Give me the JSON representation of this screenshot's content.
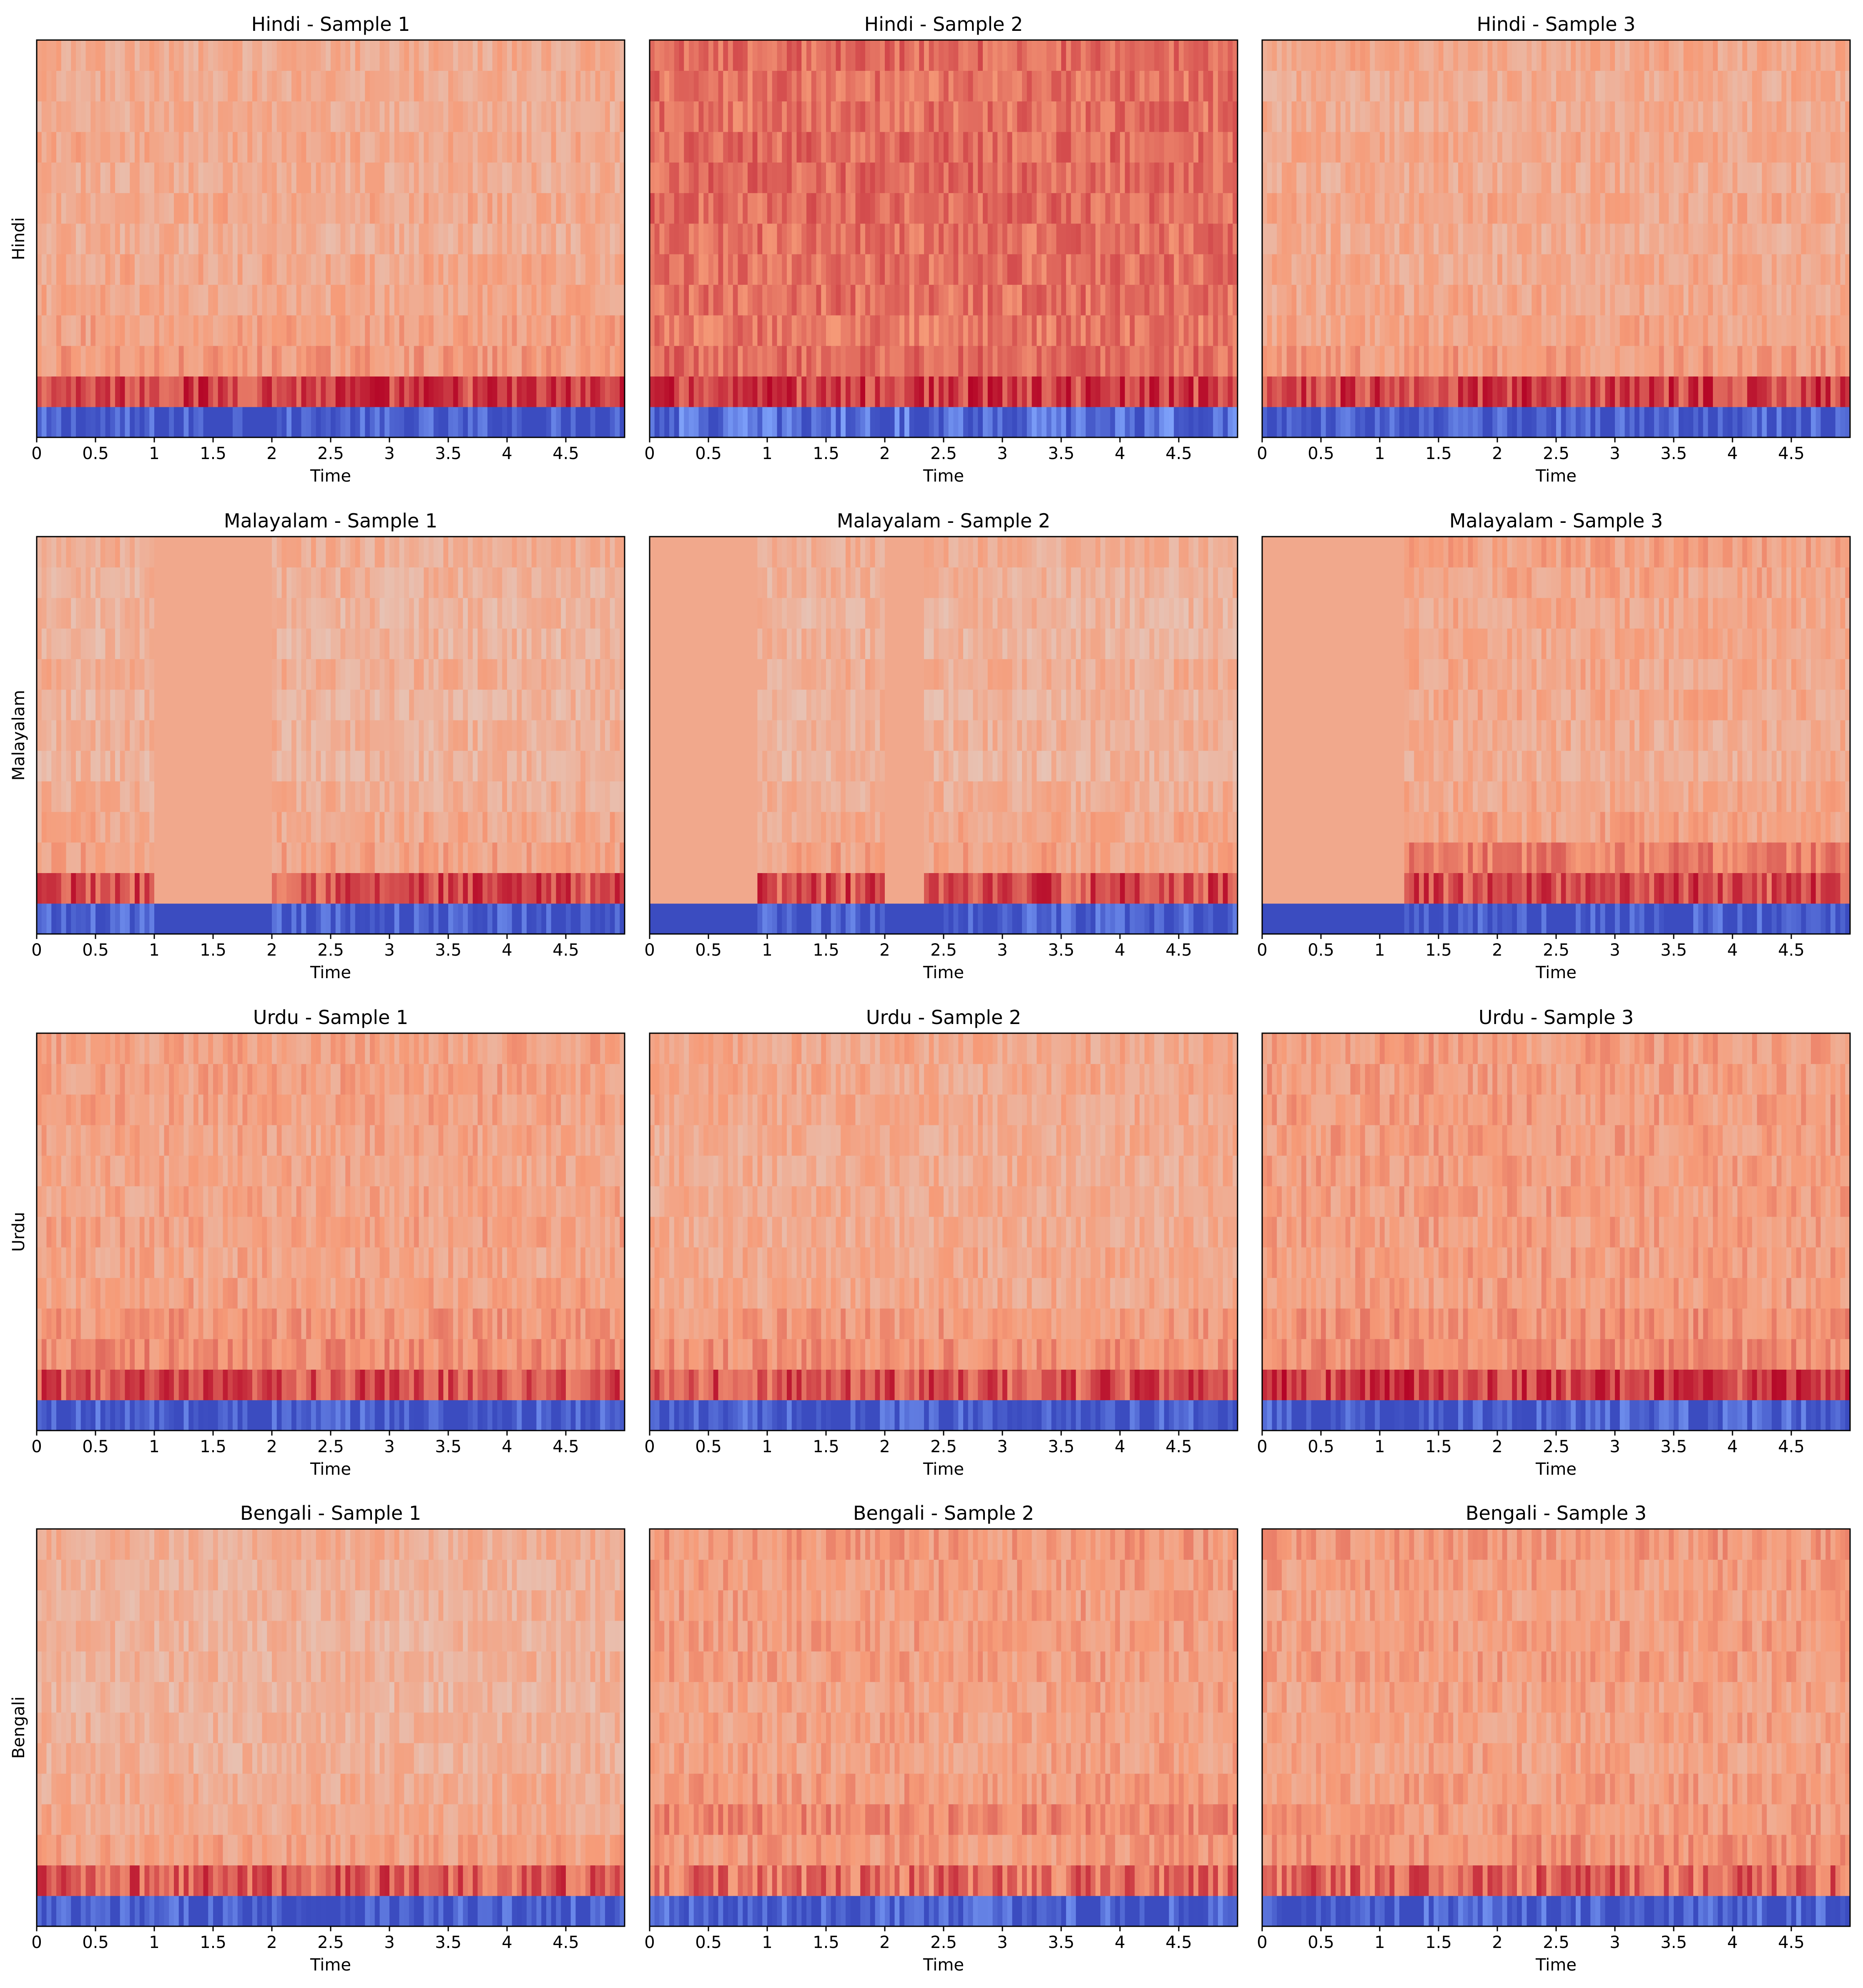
{
  "chart_data": {
    "type": "heatmap",
    "description_type": "grid of MFCC heatmaps (coolwarm colormap), 4 rows x 3 columns",
    "colormap": "coolwarm",
    "n_coefficients": 13,
    "xlabel": "Time",
    "xticks": [
      "0",
      "0.5",
      "1",
      "1.5",
      "2",
      "2.5",
      "3",
      "3.5",
      "4",
      "4.5"
    ],
    "xlim": [
      0,
      5.0
    ],
    "rows": [
      {
        "ylabel": "Hindi",
        "panels": [
          {
            "title": "Hindi - Sample 1",
            "profile": [
              0.02,
              0.9,
              0.74,
              0.72,
              0.7,
              0.7,
              0.68,
              0.7,
              0.68,
              0.7,
              0.68,
              0.69,
              0.69
            ],
            "silence": []
          },
          {
            "title": "Hindi - Sample 2",
            "profile": [
              0.1,
              0.9,
              0.83,
              0.81,
              0.82,
              0.82,
              0.82,
              0.83,
              0.83,
              0.83,
              0.82,
              0.82,
              0.83
            ],
            "silence": []
          },
          {
            "title": "Hindi - Sample 3",
            "profile": [
              0.03,
              0.9,
              0.74,
              0.71,
              0.7,
              0.7,
              0.69,
              0.7,
              0.69,
              0.7,
              0.69,
              0.69,
              0.7
            ],
            "silence": []
          }
        ]
      },
      {
        "ylabel": "Malayalam",
        "panels": [
          {
            "title": "Malayalam - Sample 1",
            "profile": [
              0.02,
              0.88,
              0.72,
              0.7,
              0.68,
              0.66,
              0.67,
              0.66,
              0.68,
              0.66,
              0.66,
              0.67,
              0.68
            ],
            "silence": [
              [
                1.0,
                2.0
              ],
              [
                3.75,
                3.75
              ]
            ]
          },
          {
            "title": "Malayalam - Sample 2",
            "profile": [
              0.02,
              0.88,
              0.72,
              0.7,
              0.68,
              0.66,
              0.67,
              0.66,
              0.68,
              0.66,
              0.66,
              0.67,
              0.68
            ],
            "silence": [
              [
                0.0,
                0.9
              ],
              [
                2.0,
                2.35
              ]
            ]
          },
          {
            "title": "Malayalam - Sample 3",
            "profile": [
              0.01,
              0.88,
              0.8,
              0.72,
              0.7,
              0.68,
              0.69,
              0.7,
              0.7,
              0.7,
              0.7,
              0.71,
              0.72
            ],
            "silence": [
              [
                0.0,
                1.2
              ]
            ]
          }
        ]
      },
      {
        "ylabel": "Urdu",
        "panels": [
          {
            "title": "Urdu - Sample 1",
            "profile": [
              0.02,
              0.87,
              0.77,
              0.75,
              0.72,
              0.71,
              0.72,
              0.71,
              0.71,
              0.71,
              0.72,
              0.72,
              0.72
            ],
            "silence": []
          },
          {
            "title": "Urdu - Sample 2",
            "profile": [
              0.02,
              0.87,
              0.76,
              0.74,
              0.7,
              0.7,
              0.69,
              0.69,
              0.69,
              0.69,
              0.7,
              0.7,
              0.7
            ],
            "silence": []
          },
          {
            "title": "Urdu - Sample 3",
            "profile": [
              0.03,
              0.9,
              0.77,
              0.76,
              0.73,
              0.73,
              0.73,
              0.73,
              0.73,
              0.73,
              0.73,
              0.73,
              0.73
            ],
            "silence": []
          }
        ]
      },
      {
        "ylabel": "Bengali",
        "panels": [
          {
            "title": "Bengali - Sample 1",
            "profile": [
              0.02,
              0.86,
              0.72,
              0.7,
              0.69,
              0.67,
              0.67,
              0.66,
              0.67,
              0.66,
              0.67,
              0.67,
              0.68
            ],
            "silence": []
          },
          {
            "title": "Bengali - Sample 2",
            "profile": [
              0.05,
              0.82,
              0.74,
              0.78,
              0.74,
              0.72,
              0.72,
              0.72,
              0.73,
              0.73,
              0.73,
              0.73,
              0.74
            ],
            "silence": []
          },
          {
            "title": "Bengali - Sample 3",
            "profile": [
              0.04,
              0.84,
              0.76,
              0.74,
              0.73,
              0.72,
              0.72,
              0.72,
              0.73,
              0.73,
              0.72,
              0.73,
              0.74
            ],
            "silence": []
          }
        ]
      }
    ]
  }
}
